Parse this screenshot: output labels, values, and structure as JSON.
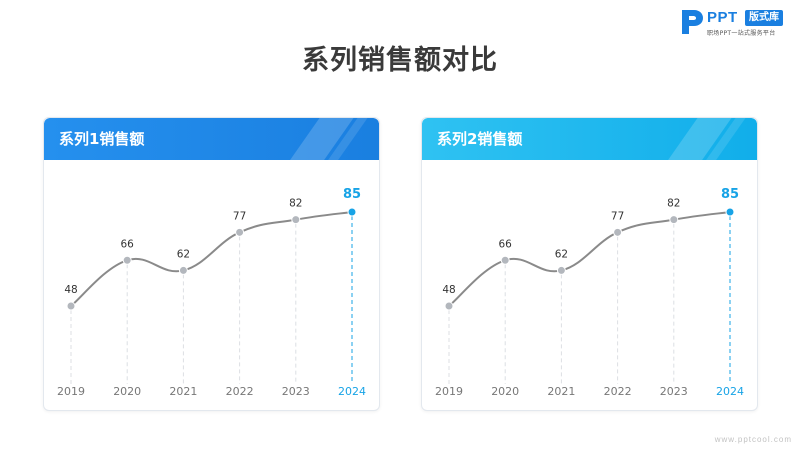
{
  "logo": {
    "name": "PPT",
    "badge": "版式库",
    "tagline": "职场PPT一站式服务平台"
  },
  "page": {
    "title": "系列销售额对比",
    "footer_url": "www.pptcool.com"
  },
  "colors": {
    "line": "#8a8a8a",
    "point": "#b3b7bd",
    "highlight": "#17a3e6",
    "label": "#333333",
    "axis_label": "#777777"
  },
  "chart_data": [
    {
      "type": "line",
      "title": "系列1销售额",
      "categories": [
        "2019",
        "2020",
        "2021",
        "2022",
        "2023",
        "2024"
      ],
      "values": [
        48,
        66,
        62,
        77,
        82,
        85
      ],
      "highlight_index": 5,
      "ylim": [
        0,
        100
      ],
      "grid": false,
      "legend": "none"
    },
    {
      "type": "line",
      "title": "系列2销售额",
      "categories": [
        "2019",
        "2020",
        "2021",
        "2022",
        "2023",
        "2024"
      ],
      "values": [
        48,
        66,
        62,
        77,
        82,
        85
      ],
      "highlight_index": 5,
      "ylim": [
        0,
        100
      ],
      "grid": false,
      "legend": "none"
    }
  ]
}
